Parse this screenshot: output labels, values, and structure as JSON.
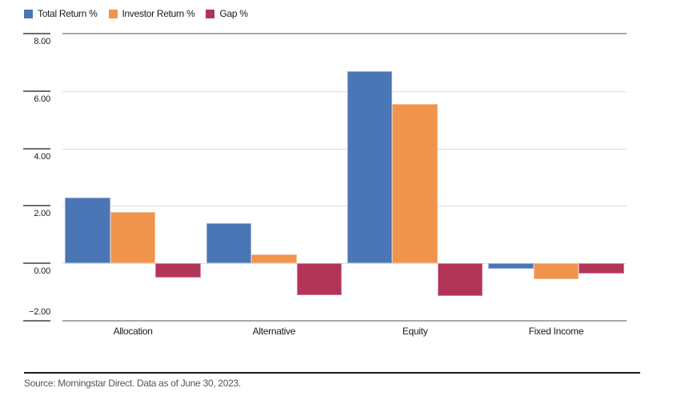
{
  "legend": {
    "items": [
      {
        "label": "Total Return %",
        "color": "#4a76b5",
        "swatch_icon": "square-swatch-blue"
      },
      {
        "label": "Investor Return %",
        "color": "#f0934d",
        "swatch_icon": "square-swatch-orange"
      },
      {
        "label": "Gap %",
        "color": "#b23459",
        "swatch_icon": "square-swatch-crimson"
      }
    ]
  },
  "chart_data": {
    "type": "bar",
    "title": "",
    "categories": [
      "Allocation",
      "Alternative",
      "Equity",
      "Fixed Income"
    ],
    "series": [
      {
        "name": "Total Return %",
        "color": "#4a76b5",
        "values": [
          2.3,
          1.4,
          6.7,
          -0.2
        ]
      },
      {
        "name": "Investor Return %",
        "color": "#f0934d",
        "values": [
          1.8,
          0.3,
          5.55,
          -0.55
        ]
      },
      {
        "name": "Gap %",
        "color": "#b23459",
        "values": [
          -0.5,
          -1.1,
          -1.15,
          -0.35
        ]
      }
    ],
    "ylim": [
      -2,
      8
    ],
    "yticks": [
      8,
      6,
      4,
      2,
      0,
      -2
    ],
    "ytick_labels": [
      "8.00",
      "6.00",
      "4.00",
      "2.00",
      "0.00",
      "−2.00"
    ],
    "grid": true,
    "legend_position": "top-left",
    "xlabel": "",
    "ylabel": ""
  },
  "footer": {
    "source": "Source: Morningstar Direct. Data as of June 30, 2023."
  },
  "colors": {
    "grid_line": "#dfdfdf",
    "axis_border": "#a9a9a9",
    "tick": "#6e6e6e",
    "text": "#1a1a1a",
    "source_text": "#565656",
    "divider": "#1c1c1c",
    "background": "#ffffff"
  }
}
